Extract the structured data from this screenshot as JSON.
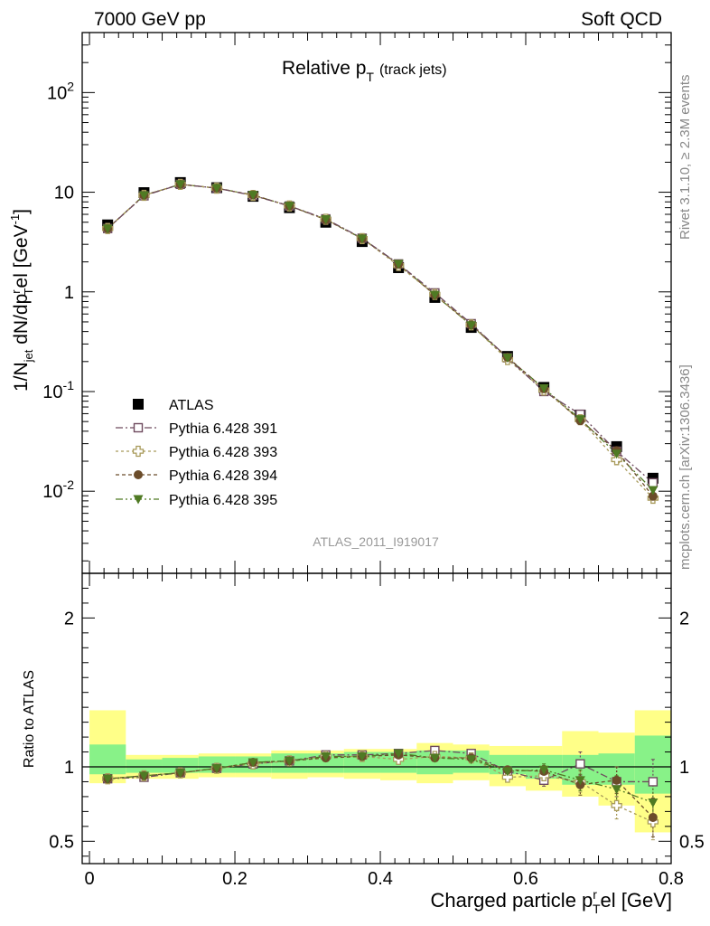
{
  "header": {
    "left": "7000 GeV pp",
    "right": "Soft QCD"
  },
  "side_labels": {
    "rivet": "Rivet 3.1.10, ≥ 2.3M events",
    "mcplots": "mcplots.cern.ch [arXiv:1306.3436]"
  },
  "chart_data": {
    "type": "scatter",
    "title_main": "Relative p",
    "title_sub": "T",
    "title_suffix": "(track jets)",
    "watermark": "ATLAS_2011_I919017",
    "xlabel": "Charged particle p",
    "xlabel_sup": "r",
    "xlabel_sub": "T",
    "xlabel_suffix": "el [GeV]",
    "ylabel_main": "1/N",
    "ylabel_jet": "jet",
    "ylabel_mid": " dN/dp",
    "ylabel_sup_r": "r",
    "ylabel_sub_T": "T",
    "ylabel_end": "el [GeV",
    "ylabel_exp": "-1",
    "ylabel_close": "]",
    "ratio_ylabel": "Ratio to ATLAS",
    "xlim": [
      -0.01,
      0.8
    ],
    "main_ylog": true,
    "main_ylim": [
      0.0015,
      400
    ],
    "ratio_ylim": [
      0.35,
      2.3
    ],
    "x_ticks": [
      "0",
      "0.2",
      "0.4",
      "0.6",
      "0.8"
    ],
    "main_y_ticks": [
      "10^-2",
      "10^-1",
      "1",
      "10",
      "10^2"
    ],
    "ratio_y_ticks": [
      "0.5",
      "1",
      "2"
    ],
    "legend_placement": "lower-left",
    "x": [
      0.025,
      0.075,
      0.125,
      0.175,
      0.225,
      0.275,
      0.325,
      0.375,
      0.425,
      0.475,
      0.525,
      0.575,
      0.625,
      0.675,
      0.725,
      0.775
    ],
    "atlas": {
      "name": "ATLAS",
      "values": [
        4.7,
        9.9,
        12.5,
        11.1,
        9.1,
        7.0,
        5.0,
        3.2,
        1.75,
        0.88,
        0.44,
        0.225,
        0.11,
        0.058,
        0.028,
        0.0135
      ],
      "ratio_band_inner": [
        [
          0.95,
          1.15
        ],
        [
          0.96,
          1.05
        ],
        [
          0.96,
          1.06
        ],
        [
          0.96,
          1.07
        ],
        [
          0.96,
          1.07
        ],
        [
          0.96,
          1.09
        ],
        [
          0.96,
          1.09
        ],
        [
          0.96,
          1.1
        ],
        [
          0.96,
          1.1
        ],
        [
          0.95,
          1.11
        ],
        [
          0.96,
          1.11
        ],
        [
          0.95,
          1.08
        ],
        [
          0.92,
          1.08
        ],
        [
          0.88,
          1.08
        ],
        [
          0.88,
          1.09
        ],
        [
          0.82,
          1.21
        ]
      ],
      "ratio_band_outer": [
        [
          0.89,
          1.38
        ],
        [
          0.92,
          1.08
        ],
        [
          0.92,
          1.08
        ],
        [
          0.93,
          1.09
        ],
        [
          0.93,
          1.09
        ],
        [
          0.92,
          1.11
        ],
        [
          0.93,
          1.11
        ],
        [
          0.92,
          1.12
        ],
        [
          0.91,
          1.12
        ],
        [
          0.89,
          1.16
        ],
        [
          0.91,
          1.15
        ],
        [
          0.87,
          1.14
        ],
        [
          0.84,
          1.14
        ],
        [
          0.8,
          1.24
        ],
        [
          0.74,
          1.23
        ],
        [
          0.56,
          1.38
        ]
      ],
      "color": "#000000"
    },
    "series": [
      {
        "name": "Pythia 6.428 391",
        "marker": "open-square",
        "color": "#6e4a5e",
        "dash": "8,3,2,3",
        "ratio": [
          0.92,
          0.93,
          0.96,
          0.99,
          1.02,
          1.04,
          1.08,
          1.08,
          1.09,
          1.11,
          1.09,
          0.97,
          0.91,
          1.02,
          0.9,
          0.9
        ],
        "ratio_err": [
          0.01,
          0.01,
          0.01,
          0.01,
          0.01,
          0.01,
          0.01,
          0.01,
          0.01,
          0.01,
          0.02,
          0.02,
          0.04,
          0.08,
          0.1,
          0.15
        ]
      },
      {
        "name": "Pythia 6.428 393",
        "marker": "open-cross",
        "color": "#a89a5a",
        "dash": "3,3",
        "ratio": [
          0.92,
          0.94,
          0.96,
          0.99,
          1.02,
          1.04,
          1.07,
          1.07,
          1.05,
          1.07,
          1.06,
          0.93,
          0.94,
          0.9,
          0.74,
          0.63
        ],
        "ratio_err": [
          0.01,
          0.01,
          0.01,
          0.01,
          0.01,
          0.01,
          0.01,
          0.01,
          0.01,
          0.01,
          0.02,
          0.02,
          0.04,
          0.07,
          0.09,
          0.12
        ]
      },
      {
        "name": "Pythia 6.428 394",
        "marker": "filled-circle",
        "color": "#6b4c2a",
        "dash": "4,3",
        "ratio": [
          0.92,
          0.94,
          0.96,
          0.99,
          1.03,
          1.04,
          1.06,
          1.07,
          1.08,
          1.06,
          1.06,
          0.98,
          0.97,
          0.88,
          0.91,
          0.66
        ],
        "ratio_err": [
          0.01,
          0.01,
          0.01,
          0.01,
          0.01,
          0.01,
          0.01,
          0.01,
          0.01,
          0.01,
          0.02,
          0.02,
          0.04,
          0.07,
          0.09,
          0.13
        ]
      },
      {
        "name": "Pythia 6.428 395",
        "marker": "filled-triangle-down",
        "color": "#4f7a23",
        "dash": "8,3,2,3,2,3",
        "ratio": [
          0.92,
          0.94,
          0.96,
          0.99,
          1.03,
          1.04,
          1.07,
          1.07,
          1.09,
          1.06,
          1.05,
          0.97,
          0.98,
          0.91,
          0.85,
          0.76
        ],
        "ratio_err": [
          0.01,
          0.01,
          0.01,
          0.01,
          0.01,
          0.01,
          0.01,
          0.01,
          0.01,
          0.01,
          0.02,
          0.02,
          0.04,
          0.07,
          0.09,
          0.12
        ]
      }
    ],
    "colors": {
      "band_inner": "#88f288",
      "band_outer": "#ffff88"
    }
  }
}
